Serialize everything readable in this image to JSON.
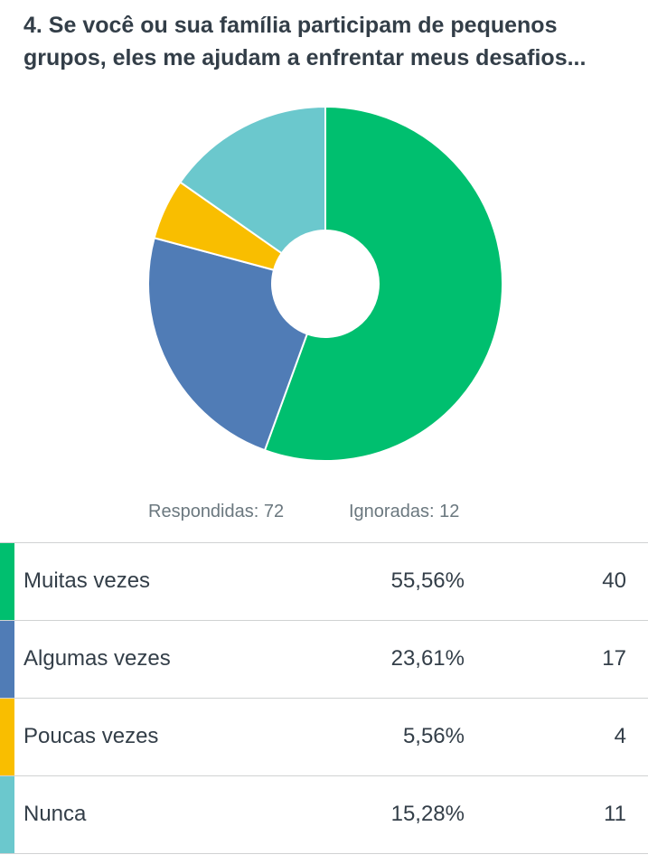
{
  "question": {
    "title": "4. Se você ou sua família participam de pequenos grupos, eles me ajudam a enfrentar meus desafios..."
  },
  "summary": {
    "answered": "Respondidas: 72",
    "skipped": "Ignoradas: 12"
  },
  "answers": [
    {
      "label": "Muitas vezes",
      "percent": "55,56%",
      "count": "40",
      "color": "#00bf6f"
    },
    {
      "label": "Algumas vezes",
      "percent": "23,61%",
      "count": "17",
      "color": "#507cb6"
    },
    {
      "label": "Poucas vezes",
      "percent": "5,56%",
      "count": "4",
      "color": "#f9be00"
    },
    {
      "label": "Nunca",
      "percent": "15,28%",
      "count": "11",
      "color": "#6bc8cd"
    }
  ],
  "chart_data": {
    "type": "pie",
    "style": "donut",
    "categories": [
      "Muitas vezes",
      "Algumas vezes",
      "Poucas vezes",
      "Nunca"
    ],
    "values": [
      40,
      17,
      4,
      11
    ],
    "percentages": [
      55.56,
      23.61,
      5.56,
      15.28
    ],
    "colors": [
      "#00bf6f",
      "#507cb6",
      "#f9be00",
      "#6bc8cd"
    ],
    "start": "top",
    "direction": "clockwise",
    "legend": "table-below"
  }
}
